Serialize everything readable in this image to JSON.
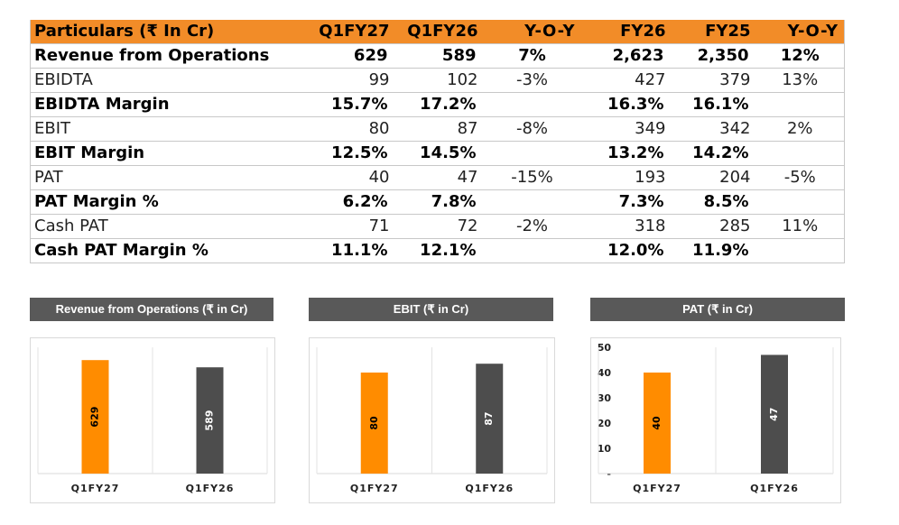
{
  "table": {
    "headers": [
      "Particulars (₹ In Cr)",
      "Q1FY27",
      "Q1FY26",
      "Y-O-Y",
      "FY26",
      "FY25",
      "Y-O-Y"
    ],
    "rows": [
      {
        "style": "bold",
        "cells": [
          "Revenue from Operations",
          "629",
          "589",
          "7%",
          "2,623",
          "2,350",
          "12%"
        ]
      },
      {
        "style": "thin",
        "cells": [
          "EBIDTA",
          "99",
          "102",
          "-3%",
          "427",
          "379",
          "13%"
        ]
      },
      {
        "style": "bold",
        "cells": [
          "EBIDTA Margin",
          "15.7%",
          "17.2%",
          "",
          "16.3%",
          "16.1%",
          ""
        ]
      },
      {
        "style": "thin",
        "cells": [
          "EBIT",
          "80",
          "87",
          "-8%",
          "349",
          "342",
          "2%"
        ]
      },
      {
        "style": "bold",
        "cells": [
          "EBIT Margin",
          "12.5%",
          "14.5%",
          "",
          "13.2%",
          "14.2%",
          ""
        ]
      },
      {
        "style": "thin",
        "cells": [
          "PAT",
          "40",
          "47",
          "-15%",
          "193",
          "204",
          "-5%"
        ]
      },
      {
        "style": "bold",
        "cells": [
          "PAT Margin %",
          "6.2%",
          "7.8%",
          "",
          "7.3%",
          "8.5%",
          ""
        ]
      },
      {
        "style": "thin",
        "cells": [
          "Cash PAT",
          "71",
          "72",
          "-2%",
          "318",
          "285",
          "11%"
        ]
      },
      {
        "style": "bold",
        "cells": [
          "Cash PAT Margin %",
          "11.1%",
          "12.1%",
          "",
          "12.0%",
          "11.9%",
          ""
        ]
      }
    ]
  },
  "colors": {
    "header_bg": "#f28c28",
    "bar_current": "#ff8c00",
    "bar_prior": "#4d4d4d",
    "title_bg": "#595959"
  },
  "chart_data": [
    {
      "type": "bar",
      "title": "Revenue from Operations (₹ in Cr)",
      "categories": [
        "Q1FY27",
        "Q1FY26"
      ],
      "values": [
        629,
        589
      ],
      "ylim": [
        0,
        700
      ],
      "show_y_axis": false
    },
    {
      "type": "bar",
      "title": "EBIT (₹ in Cr)",
      "categories": [
        "Q1FY27",
        "Q1FY26"
      ],
      "values": [
        80,
        87
      ],
      "ylim": [
        0,
        100
      ],
      "show_y_axis": false
    },
    {
      "type": "bar",
      "title": "PAT (₹ in Cr)",
      "categories": [
        "Q1FY27",
        "Q1FY26"
      ],
      "values": [
        40,
        47
      ],
      "ylim": [
        0,
        50
      ],
      "yticks": [
        "-",
        "10",
        "20",
        "30",
        "40",
        "50"
      ],
      "show_y_axis": true
    }
  ]
}
